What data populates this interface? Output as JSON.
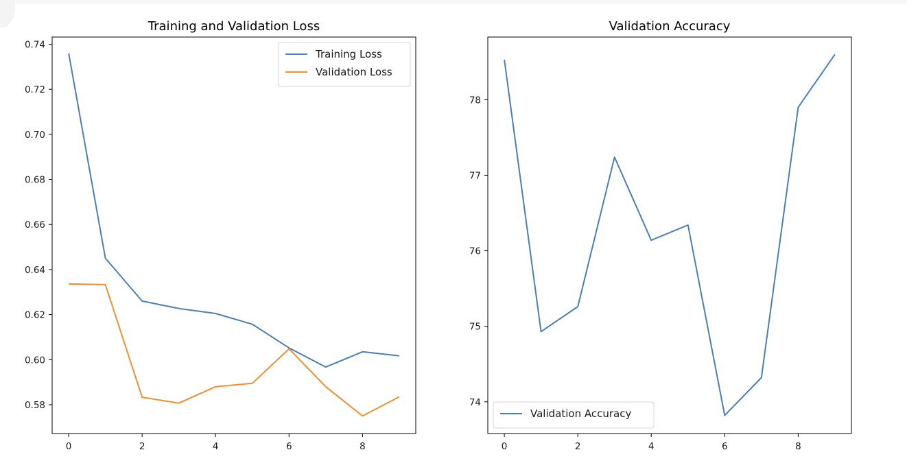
{
  "chart_data": [
    {
      "type": "line",
      "title": "Training and Validation Loss",
      "xlabel": "",
      "ylabel": "",
      "x": [
        0,
        1,
        2,
        3,
        4,
        5,
        6,
        7,
        8,
        9
      ],
      "xlim": [
        -0.45,
        9.45
      ],
      "ylim": [
        0.5672,
        0.7432
      ],
      "xticks": [
        0,
        2,
        4,
        6,
        8
      ],
      "yticks": [
        0.58,
        0.6,
        0.62,
        0.64,
        0.66,
        0.68,
        0.7,
        0.72,
        0.74
      ],
      "ytick_format": 2,
      "legend": "top-right",
      "grid": false,
      "series": [
        {
          "name": "Training Loss",
          "color": "#4a7fb5",
          "values": [
            0.736,
            0.645,
            0.626,
            0.6227,
            0.6205,
            0.6157,
            0.6052,
            0.5967,
            0.6035,
            0.6017
          ]
        },
        {
          "name": "Validation Loss",
          "color": "#f28e2f",
          "values": [
            0.6336,
            0.6333,
            0.5833,
            0.5807,
            0.588,
            0.5895,
            0.6048,
            0.588,
            0.575,
            0.5835
          ]
        }
      ]
    },
    {
      "type": "line",
      "title": "Validation Accuracy",
      "xlabel": "",
      "ylabel": "",
      "x": [
        0,
        1,
        2,
        3,
        4,
        5,
        6,
        7,
        8,
        9
      ],
      "xlim": [
        -0.45,
        9.45
      ],
      "ylim": [
        73.58,
        78.83
      ],
      "xticks": [
        0,
        2,
        4,
        6,
        8
      ],
      "yticks": [
        74,
        75,
        76,
        77,
        78
      ],
      "ytick_format": 0,
      "legend": "bottom-left",
      "grid": false,
      "series": [
        {
          "name": "Validation Accuracy",
          "color": "#4a7fb5",
          "values": [
            78.53,
            74.93,
            75.26,
            77.24,
            76.14,
            76.34,
            73.82,
            74.32,
            77.9,
            78.6
          ]
        }
      ]
    }
  ]
}
